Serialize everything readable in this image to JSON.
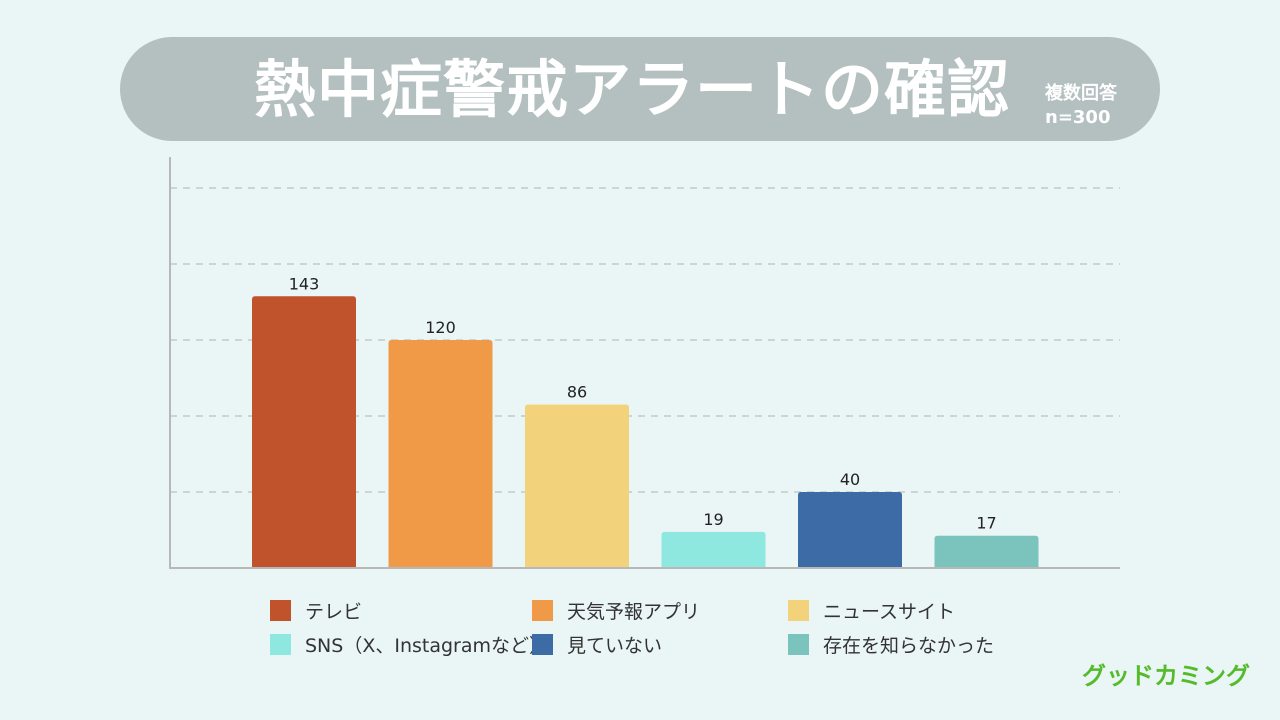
{
  "title": {
    "main": "熱中症警戒アラートの確認",
    "note_line1": "複数回答",
    "note_line2": "n=300"
  },
  "brand": "グッドカミング",
  "colors": {
    "background": "#eaf5f5",
    "title_bg": "#b3c0bf",
    "axis": "#b8b8b8",
    "grid": "#c8c8c8",
    "brand": "#55bb2a"
  },
  "chart_data": {
    "type": "bar",
    "title": "熱中症警戒アラートの確認",
    "categories": [
      "テレビ",
      "天気予報アプリ",
      "ニュースサイト",
      "SNS（X、Instagramなど）",
      "見ていない",
      "存在を知らなかった"
    ],
    "values": [
      143,
      120,
      86,
      19,
      40,
      17
    ],
    "colors": [
      "#c0532b",
      "#f09a48",
      "#f2d27a",
      "#8fe8e0",
      "#3d6ba5",
      "#7ac4bd"
    ],
    "ylim": [
      0,
      200
    ],
    "gridlines": [
      40,
      80,
      120,
      160,
      200
    ],
    "grid": true,
    "xlabel": "",
    "ylabel": "",
    "legend_position": "bottom"
  }
}
